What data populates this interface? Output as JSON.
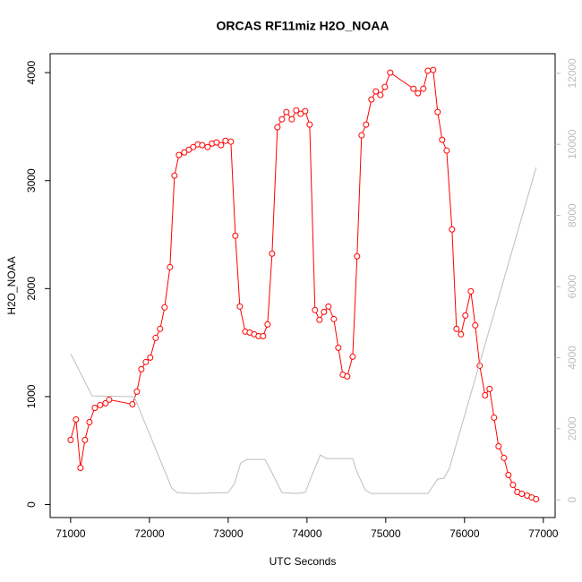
{
  "chart_data": {
    "type": "line",
    "title": "ORCAS RF11miz H2O_NOAA",
    "x_label": "UTC Seconds",
    "y_label": "H2O_NOAA",
    "xlim": [
      70740,
      77150
    ],
    "xticks": [
      71000,
      72000,
      73000,
      74000,
      75000,
      76000,
      77000
    ],
    "ylim": [
      -120,
      4175
    ],
    "yticks": [
      0,
      1000,
      2000,
      3000,
      4000
    ],
    "y2lim": [
      -500,
      12550
    ],
    "y2ticks": [
      0,
      2000,
      4000,
      6000,
      8000,
      10000,
      12000
    ],
    "y2_color": "#bebebe",
    "series": [
      {
        "color": "#ff0000",
        "marker": "circle",
        "x": [
          71000,
          71068,
          71125,
          71182,
          71239,
          71307,
          71375,
          71443,
          71489,
          71784,
          71841,
          71898,
          71955,
          72011,
          72080,
          72136,
          72193,
          72261,
          72318,
          72375,
          72443,
          72500,
          72557,
          72614,
          72670,
          72739,
          72795,
          72852,
          72909,
          72966,
          73034,
          73091,
          73148,
          73216,
          73273,
          73330,
          73386,
          73443,
          73500,
          73557,
          73625,
          73682,
          73739,
          73807,
          73864,
          73920,
          73977,
          74034,
          74102,
          74159,
          74216,
          74273,
          74341,
          74398,
          74455,
          74511,
          74580,
          74636,
          74693,
          74750,
          74818,
          74875,
          74932,
          74989,
          75057,
          75352,
          75409,
          75477,
          75534,
          75602,
          75659,
          75716,
          75773,
          75841,
          75898,
          75955,
          76011,
          76080,
          76136,
          76193,
          76261,
          76318,
          76375,
          76432,
          76500,
          76557,
          76614,
          76670,
          76727,
          76795,
          76852,
          76909
        ],
        "values": [
          598,
          788,
          340,
          598,
          763,
          896,
          921,
          938,
          971,
          929,
          1046,
          1253,
          1320,
          1361,
          1544,
          1627,
          1826,
          2199,
          3046,
          3237,
          3261,
          3286,
          3311,
          3336,
          3328,
          3311,
          3344,
          3353,
          3328,
          3369,
          3361,
          2490,
          1834,
          1602,
          1593,
          1577,
          1560,
          1560,
          1668,
          2324,
          3494,
          3568,
          3635,
          3568,
          3651,
          3618,
          3643,
          3519,
          1801,
          1710,
          1784,
          1834,
          1718,
          1452,
          1203,
          1187,
          1369,
          2299,
          3419,
          3519,
          3751,
          3826,
          3793,
          3867,
          4000,
          3851,
          3809,
          3851,
          4017,
          4025,
          3635,
          3378,
          3278,
          2548,
          1627,
          1577,
          1751,
          1975,
          1660,
          1286,
          1012,
          1071,
          805,
          539,
          432,
          274,
          183,
          116,
          100,
          83,
          66,
          50
        ]
      },
      {
        "color": "#bebebe",
        "axis": "y2",
        "x": [
          71000,
          71273,
          71807,
          72284,
          72352,
          72545,
          73000,
          73080,
          73159,
          73239,
          73466,
          73557,
          73682,
          73852,
          73977,
          74057,
          74170,
          74250,
          74580,
          74625,
          74739,
          74818,
          75534,
          75659,
          75739,
          75807,
          76909
        ],
        "values": [
          4109,
          2924,
          2899,
          328,
          202,
          176,
          202,
          454,
          1034,
          1134,
          1134,
          756,
          202,
          176,
          202,
          655,
          1260,
          1160,
          1160,
          832,
          277,
          176,
          176,
          580,
          605,
          882,
          9352
        ]
      }
    ]
  }
}
